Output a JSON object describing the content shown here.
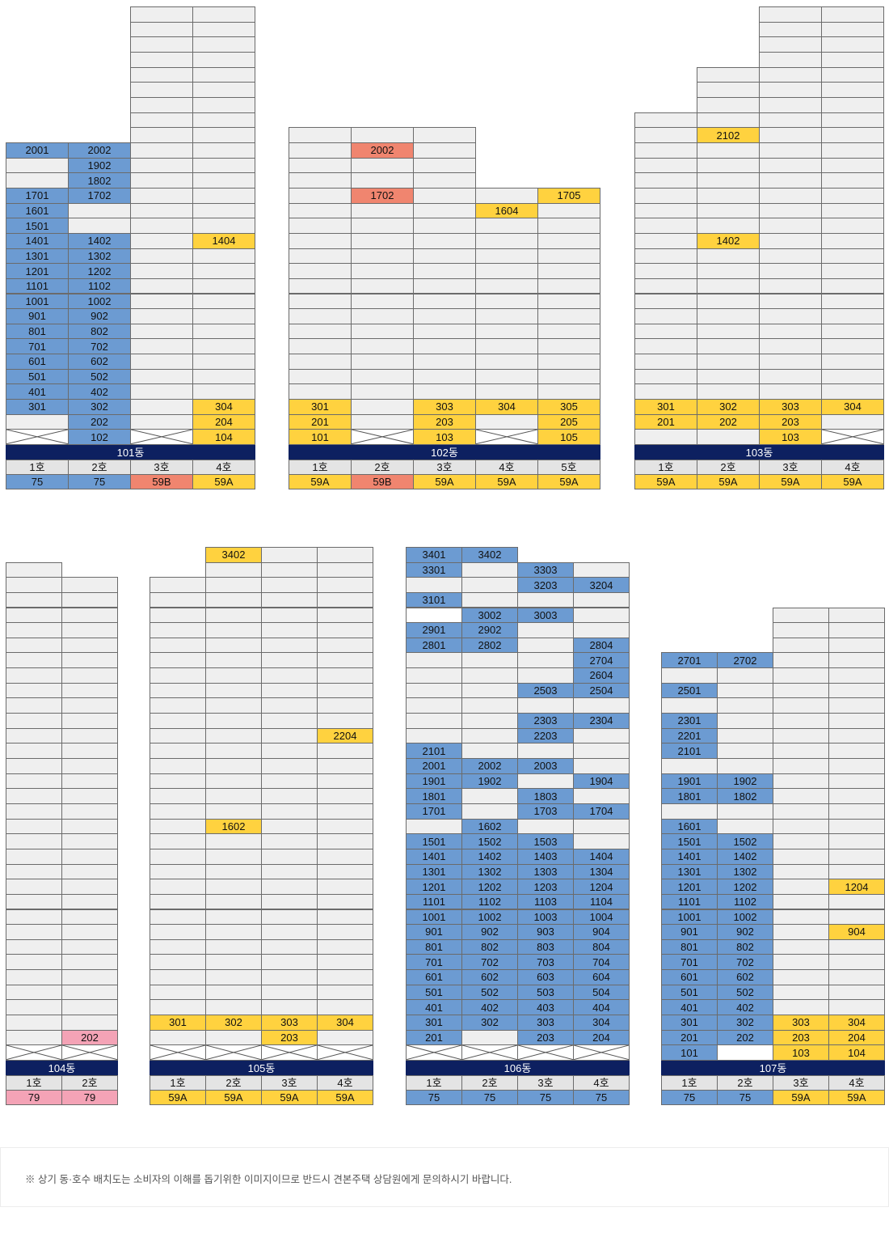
{
  "colors": {
    "occupied": "#6c9bd2",
    "available": "#ffd23f",
    "type_59b": "#f0856f",
    "type_79": "#f4a3b6",
    "empty": "#efefef",
    "header_bar": "#0d2060"
  },
  "buildings": [
    {
      "name": "101동",
      "floors": 25,
      "columns": [
        {
          "label": "1호",
          "type": "75",
          "color": "blue",
          "height": 20,
          "units": {
            "1": "x",
            "2": "-",
            "3": "301",
            "4": "401",
            "5": "501",
            "6": "601",
            "7": "701",
            "8": "801",
            "9": "901",
            "10": "1001",
            "11": "1101",
            "12": "1201",
            "13": "1301",
            "14": "1401",
            "15": "1501",
            "16": "1601",
            "17": "1701",
            "18": "-",
            "19": "-",
            "20": "2001"
          }
        },
        {
          "label": "2호",
          "type": "75",
          "color": "blue",
          "height": 20,
          "units": {
            "1": "102",
            "2": "202",
            "3": "302",
            "4": "402",
            "5": "502",
            "6": "602",
            "7": "702",
            "8": "802",
            "9": "902",
            "10": "1002",
            "11": "1102",
            "12": "1202",
            "13": "1302",
            "14": "1402",
            "17": "1702",
            "18": "1802",
            "19": "1902",
            "20": "2002"
          }
        },
        {
          "label": "3호",
          "type": "59B",
          "color": "salmon",
          "height": 29,
          "units": {
            "1": "x"
          }
        },
        {
          "label": "4호",
          "type": "59A",
          "color": "yellow",
          "height": 29,
          "units": {
            "1": "104",
            "2": "204",
            "3": "304",
            "14": "1404"
          }
        }
      ]
    },
    {
      "name": "102동",
      "floors": 21,
      "columns": [
        {
          "label": "1호",
          "type": "59A",
          "color": "yellow",
          "height": 21,
          "units": {
            "1": "101",
            "2": "201",
            "3": "301"
          }
        },
        {
          "label": "2호",
          "type": "59B",
          "color": "salmon",
          "height": 21,
          "units": {
            "1": "x",
            "17": "1702",
            "20": "2002"
          }
        },
        {
          "label": "3호",
          "type": "59A",
          "color": "yellow",
          "height": 21,
          "units": {
            "1": "103",
            "2": "203",
            "3": "303"
          }
        },
        {
          "label": "4호",
          "type": "59A",
          "color": "yellow",
          "height": 17,
          "units": {
            "1": "x",
            "3": "304",
            "16": "1604"
          }
        },
        {
          "label": "5호",
          "type": "59A",
          "color": "yellow",
          "height": 17,
          "units": {
            "1": "105",
            "2": "205",
            "3": "305",
            "17": "1705"
          }
        }
      ]
    },
    {
      "name": "103동",
      "floors": 29,
      "columns": [
        {
          "label": "1호",
          "type": "59A",
          "color": "yellow",
          "height": 22,
          "units": {
            "1": "-",
            "2": "201",
            "3": "301"
          }
        },
        {
          "label": "2호",
          "type": "59A",
          "color": "yellow",
          "height": 25,
          "units": {
            "1": "-",
            "2": "202",
            "3": "302",
            "14": "1402",
            "21": "2102"
          }
        },
        {
          "label": "3호",
          "type": "59A",
          "color": "yellow",
          "height": 29,
          "units": {
            "1": "103",
            "2": "203",
            "3": "303"
          }
        },
        {
          "label": "4호",
          "type": "59A",
          "color": "yellow",
          "height": 29,
          "units": {
            "1": "x",
            "3": "304"
          }
        }
      ]
    },
    {
      "name": "104동",
      "floors": 35,
      "columns": [
        {
          "label": "1호",
          "type": "79",
          "color": "pink",
          "height": 33,
          "units": {
            "1": "x"
          }
        },
        {
          "label": "2호",
          "type": "79",
          "color": "pink",
          "height": 32,
          "units": {
            "1": "x",
            "2": "202"
          }
        }
      ]
    },
    {
      "name": "105동",
      "floors": 35,
      "columns": [
        {
          "label": "1호",
          "type": "59A",
          "color": "yellow",
          "height": 32,
          "units": {
            "1": "x",
            "3": "301"
          }
        },
        {
          "label": "2호",
          "type": "59A",
          "color": "yellow",
          "height": 34,
          "units": {
            "1": "x",
            "3": "302",
            "16": "1602",
            "34": "3402"
          }
        },
        {
          "label": "3호",
          "type": "59A",
          "color": "yellow",
          "height": 34,
          "units": {
            "1": "x",
            "2": "203",
            "3": "303"
          }
        },
        {
          "label": "4호",
          "type": "59A",
          "color": "yellow",
          "height": 34,
          "units": {
            "1": "x",
            "3": "304",
            "22": "2204"
          }
        }
      ]
    },
    {
      "name": "106동",
      "floors": 35,
      "columns": [
        {
          "label": "1호",
          "type": "75",
          "color": "blue",
          "height": 34,
          "units": {
            "1": "x",
            "2": "201",
            "3": "301",
            "4": "401",
            "5": "501",
            "6": "601",
            "7": "701",
            "8": "801",
            "9": "901",
            "10": "1001",
            "11": "1101",
            "12": "1201",
            "13": "1301",
            "14": "1401",
            "15": "1501",
            "17": "1701",
            "18": "1801",
            "19": "1901",
            "20": "2001",
            "21": "2101",
            "28": "2801",
            "29": "2901",
            "30": "w",
            "31": "3101",
            "33": "3301",
            "34": "3401"
          }
        },
        {
          "label": "2호",
          "type": "75",
          "color": "blue",
          "height": 34,
          "units": {
            "1": "x",
            "3": "302",
            "4": "402",
            "5": "502",
            "6": "602",
            "7": "702",
            "8": "802",
            "9": "902",
            "10": "1002",
            "11": "1102",
            "12": "1202",
            "13": "1302",
            "14": "1402",
            "15": "1502",
            "16": "1602",
            "19": "1902",
            "20": "2002",
            "28": "2802",
            "29": "2902",
            "30": "3002",
            "34": "3402"
          }
        },
        {
          "label": "3호",
          "type": "75",
          "color": "blue",
          "height": 33,
          "units": {
            "1": "x",
            "2": "203",
            "3": "303",
            "4": "403",
            "5": "503",
            "6": "603",
            "7": "703",
            "8": "803",
            "9": "903",
            "10": "1003",
            "11": "1103",
            "12": "1203",
            "13": "1303",
            "14": "1403",
            "15": "1503",
            "17": "1703",
            "18": "1803",
            "20": "2003",
            "22": "2203",
            "23": "2303",
            "25": "2503",
            "30": "3003",
            "32": "3203",
            "33": "3303"
          }
        },
        {
          "label": "4호",
          "type": "75",
          "color": "blue",
          "height": 33,
          "units": {
            "1": "x",
            "2": "204",
            "3": "304",
            "4": "404",
            "5": "504",
            "6": "604",
            "7": "704",
            "8": "804",
            "9": "904",
            "10": "1004",
            "11": "1104",
            "12": "1204",
            "13": "1304",
            "14": "1404",
            "17": "1704",
            "19": "1904",
            "23": "2304",
            "25": "2504",
            "26": "2604",
            "27": "2704",
            "28": "2804",
            "32": "3204"
          }
        }
      ]
    },
    {
      "name": "107동",
      "floors": 35,
      "columns": [
        {
          "label": "1호",
          "type": "75",
          "color": "blue",
          "height": 27,
          "units": {
            "1": "101",
            "2": "201",
            "3": "301",
            "4": "401",
            "5": "501",
            "6": "601",
            "7": "701",
            "8": "801",
            "9": "901",
            "10": "1001",
            "11": "1101",
            "12": "1201",
            "13": "1301",
            "14": "1401",
            "15": "1501",
            "16": "1601",
            "18": "1801",
            "19": "1901",
            "21": "2101",
            "22": "2201",
            "23": "2301",
            "25": "2501",
            "27": "2701"
          }
        },
        {
          "label": "2호",
          "type": "75",
          "color": "blue",
          "height": 27,
          "units": {
            "1": "w",
            "2": "202",
            "3": "302",
            "4": "402",
            "5": "502",
            "6": "602",
            "7": "702",
            "8": "802",
            "9": "902",
            "10": "1002",
            "11": "1102",
            "12": "1202",
            "13": "1302",
            "14": "1402",
            "15": "1502",
            "18": "1802",
            "19": "1902",
            "27": "2702"
          }
        },
        {
          "label": "3호",
          "type": "59A",
          "color": "yellow",
          "height": 30,
          "units": {
            "1": "103",
            "2": "203",
            "3": "303"
          }
        },
        {
          "label": "4호",
          "type": "59A",
          "color": "yellow",
          "height": 30,
          "units": {
            "1": "104",
            "2": "204",
            "3": "304",
            "9": "904",
            "12": "1204"
          }
        }
      ]
    }
  ],
  "footnote": "※ 상기 동·호수 배치도는 소비자의 이해를 돕기위한 이미지이므로 반드시 견본주택 상담원에게 문의하시기 바랍니다."
}
